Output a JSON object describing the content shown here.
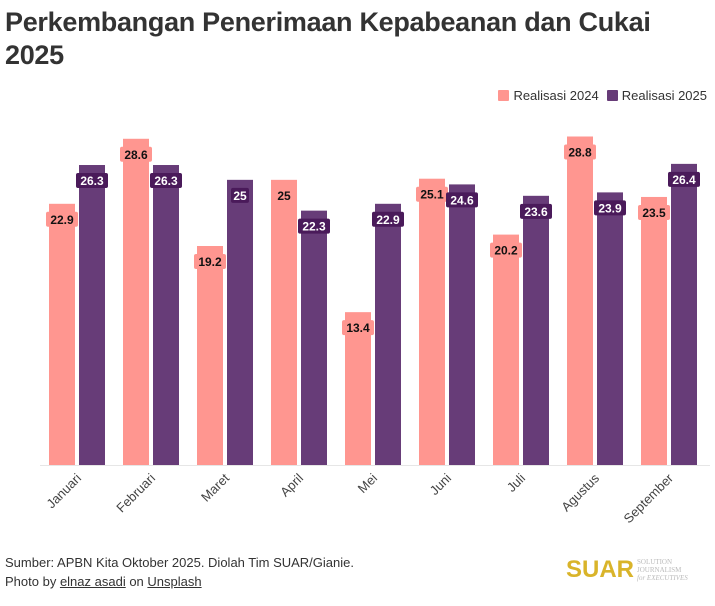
{
  "title": "Perkembangan Penerimaan Kepabeanan dan Cukai 2025",
  "source": "Sumber: APBN Kita Oktober 2025. Diolah Tim SUAR/Gianie.",
  "photo_credit": {
    "prefix": "Photo by ",
    "author": "elnaz asadi",
    "middle": " on ",
    "site": "Unsplash"
  },
  "logo": {
    "name": "SUAR",
    "tagline_1": "SOLUTION JOURNALISM",
    "tagline_2": "for EXECUTIVES"
  },
  "chart_data": {
    "type": "bar",
    "title": "Perkembangan Penerimaan Kepabeanan dan Cukai 2025",
    "xlabel": "",
    "ylabel": "",
    "ylim": [
      0,
      32
    ],
    "grid": false,
    "legend": "top-right",
    "categories": [
      "Januari",
      "Februari",
      "Maret",
      "April",
      "Mei",
      "Juni",
      "Juli",
      "Agustus",
      "September"
    ],
    "series": [
      {
        "name": "Realisasi 2024",
        "color": "#ff9690",
        "label_bg": "#ff9690",
        "values": [
          22.9,
          28.6,
          19.2,
          25,
          13.4,
          25.1,
          20.2,
          28.8,
          23.5
        ]
      },
      {
        "name": "Realisasi 2025",
        "color": "#673c78",
        "label_bg": "#4a1a5a",
        "values": [
          26.3,
          26.3,
          25,
          22.3,
          22.9,
          24.6,
          23.6,
          23.9,
          26.4
        ]
      }
    ]
  }
}
